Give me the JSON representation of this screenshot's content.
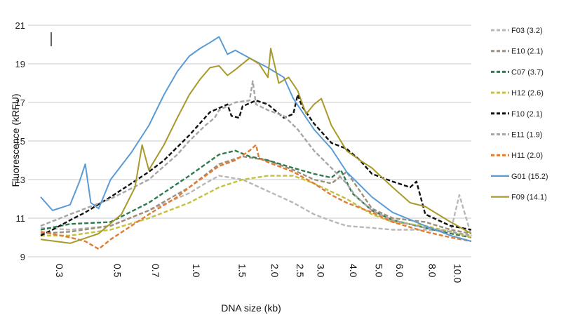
{
  "chart_data": {
    "type": "line",
    "title": "",
    "xlabel": "DNA size (kb)",
    "ylabel": "Fluorescence (kRFU)",
    "ylim": [
      9,
      21
    ],
    "y_ticks": [
      "9",
      "11",
      "13",
      "15",
      "17",
      "19",
      "21"
    ],
    "x_ticks": [
      "0.3",
      "0.5",
      "0.7",
      "1.0",
      "1.5",
      "2.0",
      "2.5",
      "3.0",
      "4.0",
      "5.0",
      "6.0",
      "8.0",
      "10.0"
    ],
    "x_scale": "log",
    "grid": "horizontal",
    "legend_position": "right",
    "series": [
      {
        "name": "F03 (3.2)",
        "color": "#b8b8b8",
        "dash": true,
        "x": [
          0.27,
          0.35,
          0.5,
          0.7,
          1.0,
          1.15,
          1.3,
          1.6,
          2.0,
          2.5,
          3.0,
          3.6,
          4.0,
          5.0,
          6.0,
          8.0,
          10.0,
          10.8,
          12.0
        ],
        "y": [
          10.5,
          10.4,
          10.6,
          11.4,
          12.3,
          12.8,
          13.2,
          13.0,
          12.4,
          11.8,
          11.2,
          10.8,
          10.6,
          10.5,
          10.4,
          10.4,
          10.3,
          12.2,
          10.1
        ]
      },
      {
        "name": "E10 (2.1)",
        "color": "#9e8e7c",
        "dash": true,
        "x": [
          0.27,
          0.35,
          0.5,
          0.7,
          1.0,
          1.3,
          1.6,
          2.0,
          2.5,
          3.0,
          3.5,
          4.0,
          4.5,
          5.0,
          6.0,
          8.0,
          10.0,
          12.0
        ],
        "y": [
          10.2,
          10.3,
          10.6,
          11.4,
          12.6,
          13.8,
          14.2,
          14.0,
          13.5,
          13.0,
          12.8,
          13.4,
          12.4,
          11.5,
          11.0,
          10.8,
          10.4,
          10.2
        ]
      },
      {
        "name": "C07 (3.7)",
        "color": "#2f7a4e",
        "dash": true,
        "x": [
          0.27,
          0.35,
          0.5,
          0.7,
          1.0,
          1.3,
          1.5,
          1.7,
          2.0,
          2.5,
          3.0,
          3.5,
          3.8,
          4.2,
          5.0,
          6.0,
          8.0,
          10.0,
          12.0
        ],
        "y": [
          10.4,
          10.7,
          10.8,
          11.8,
          13.2,
          14.3,
          14.5,
          14.2,
          14.0,
          13.6,
          13.3,
          13.1,
          13.5,
          12.3,
          11.4,
          10.9,
          10.5,
          10.2,
          10.0
        ]
      },
      {
        "name": "H12 (2.6)",
        "color": "#c6c13c",
        "dash": true,
        "x": [
          0.27,
          0.35,
          0.5,
          0.7,
          1.0,
          1.3,
          1.6,
          2.0,
          2.5,
          3.0,
          4.0,
          5.0,
          6.0,
          8.0,
          10.0,
          12.0
        ],
        "y": [
          10.1,
          10.1,
          10.4,
          11.0,
          11.8,
          12.6,
          13.0,
          13.2,
          13.2,
          12.8,
          12.0,
          11.2,
          10.8,
          10.6,
          10.3,
          10.0
        ]
      },
      {
        "name": "F10 (2.1)",
        "color": "#111111",
        "dash": true,
        "x": [
          0.27,
          0.3,
          0.35,
          0.4,
          0.5,
          0.6,
          0.7,
          0.8,
          1.0,
          1.2,
          1.4,
          1.45,
          1.55,
          1.6,
          1.8,
          2.0,
          2.3,
          2.5,
          2.6,
          2.7,
          3.0,
          3.5,
          4.0,
          4.5,
          5.0,
          6.0,
          7.0,
          7.4,
          8.0,
          10.0,
          12.0
        ],
        "y": [
          10.1,
          10.4,
          10.9,
          11.3,
          12.1,
          12.8,
          13.4,
          14.0,
          15.3,
          16.5,
          16.9,
          16.3,
          16.2,
          16.8,
          17.1,
          16.9,
          16.2,
          16.4,
          17.4,
          16.8,
          15.9,
          14.9,
          14.6,
          14.0,
          13.3,
          12.9,
          12.6,
          12.9,
          11.2,
          10.6,
          10.4
        ]
      },
      {
        "name": "E11 (1.9)",
        "color": "#a6a6a6",
        "dash": true,
        "x": [
          0.27,
          0.35,
          0.5,
          0.7,
          0.9,
          1.0,
          1.15,
          1.25,
          1.3,
          1.5,
          1.7,
          1.75,
          1.8,
          2.0,
          2.3,
          2.6,
          3.0,
          3.5,
          4.0,
          4.3,
          5.0,
          6.0,
          8.0,
          10.0,
          12.0
        ],
        "y": [
          10.6,
          11.2,
          12.0,
          13.0,
          14.3,
          15.0,
          15.8,
          16.2,
          16.6,
          17.0,
          17.1,
          18.1,
          16.9,
          16.6,
          16.3,
          15.6,
          14.5,
          13.6,
          12.8,
          12.2,
          11.4,
          10.9,
          10.5,
          10.3,
          10.1
        ]
      },
      {
        "name": "H11 (2.0)",
        "color": "#e07c34",
        "dash": true,
        "x": [
          0.27,
          0.35,
          0.4,
          0.45,
          0.5,
          0.6,
          0.7,
          0.9,
          1.0,
          1.3,
          1.5,
          1.7,
          1.8,
          1.85,
          2.0,
          2.5,
          3.0,
          3.5,
          4.0,
          5.0,
          6.0,
          8.0,
          10.0,
          12.0
        ],
        "y": [
          10.3,
          10.0,
          9.8,
          9.4,
          9.9,
          10.6,
          11.2,
          12.1,
          12.6,
          13.7,
          14.0,
          14.5,
          14.8,
          14.1,
          13.9,
          13.4,
          12.8,
          12.2,
          11.8,
          11.3,
          10.8,
          10.3,
          10.0,
          9.8
        ]
      },
      {
        "name": "G01 (15.2)",
        "color": "#5b9bd5",
        "dash": false,
        "x": [
          0.27,
          0.3,
          0.35,
          0.38,
          0.4,
          0.42,
          0.45,
          0.5,
          0.6,
          0.7,
          0.8,
          0.9,
          1.0,
          1.1,
          1.2,
          1.3,
          1.4,
          1.5,
          1.7,
          2.0,
          2.3,
          2.5,
          3.0,
          3.5,
          4.0,
          5.0,
          6.0,
          8.0,
          10.0,
          12.0
        ],
        "y": [
          12.1,
          11.4,
          11.7,
          12.9,
          13.8,
          11.8,
          11.5,
          13.0,
          14.4,
          15.8,
          17.4,
          18.6,
          19.4,
          19.8,
          20.1,
          20.4,
          19.5,
          19.7,
          19.3,
          18.8,
          18.3,
          17.2,
          15.6,
          14.6,
          13.4,
          12.1,
          11.3,
          10.6,
          10.1,
          9.8
        ]
      },
      {
        "name": "F09 (14.1)",
        "color": "#a89a2c",
        "dash": false,
        "x": [
          0.27,
          0.35,
          0.45,
          0.55,
          0.62,
          0.66,
          0.7,
          0.8,
          0.9,
          1.0,
          1.1,
          1.2,
          1.3,
          1.4,
          1.5,
          1.7,
          1.85,
          2.0,
          2.05,
          2.2,
          2.4,
          2.6,
          2.8,
          3.0,
          3.2,
          3.5,
          4.0,
          4.5,
          5.0,
          6.0,
          7.0,
          8.0,
          10.0,
          12.0
        ],
        "y": [
          9.9,
          9.7,
          10.2,
          11.2,
          12.6,
          14.8,
          13.5,
          14.8,
          16.2,
          17.4,
          18.2,
          18.8,
          18.9,
          18.4,
          18.7,
          19.3,
          19.0,
          18.3,
          19.8,
          18.0,
          18.3,
          17.6,
          16.4,
          16.9,
          17.2,
          15.8,
          14.5,
          14.0,
          13.6,
          12.6,
          11.8,
          11.6,
          10.8,
          10.2
        ]
      }
    ]
  }
}
